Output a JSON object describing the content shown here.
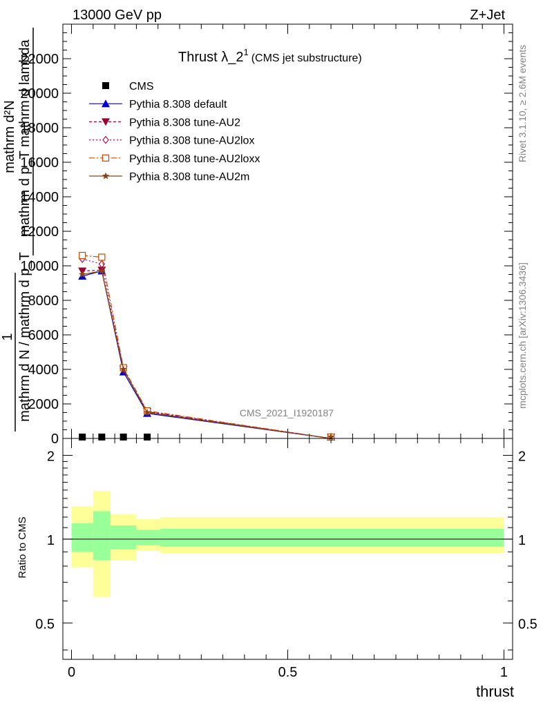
{
  "header": {
    "left": "13000 GeV pp",
    "right": "Z+Jet"
  },
  "side_labels": {
    "rivet": "Rivet 3.1.10, ≥ 2.6M events",
    "mcplots": "mcplots.cern.ch [arXiv:1306.3436]"
  },
  "watermark": "CMS_2021_I1920187",
  "colors": {
    "cms": "#000000",
    "default": "#0000cc",
    "au2": "#990033",
    "au2lox": "#aa1155",
    "au2loxx": "#cc4400",
    "au2m": "#884411",
    "band_outer": "#ffff99",
    "band_inner": "#99ff99"
  },
  "chart_data": [
    {
      "type": "line",
      "title": "Thrust λ_2",
      "title_sup": "1",
      "title_suffix": "(CMS jet substructure)",
      "ylabel_lines": [
        "mathrm d²N",
        "mathrm d p_T mathrm d lambda",
        "1",
        "mathrm d N / mathrm d p_T"
      ],
      "xlabel": "",
      "xlim": [
        -0.02,
        1.02
      ],
      "ylim": [
        0,
        24000
      ],
      "ytick_labels": [
        "0",
        "2000",
        "4000",
        "6000",
        "8000",
        "10000",
        "12000",
        "14000",
        "16000",
        "18000",
        "20000",
        "22000"
      ],
      "ytick_values": [
        0,
        2000,
        4000,
        6000,
        8000,
        10000,
        12000,
        14000,
        16000,
        18000,
        20000,
        22000
      ],
      "legend_position": "top-left",
      "series": [
        {
          "name": "CMS",
          "key": "cms",
          "marker": "square",
          "x": [
            0.025,
            0.07,
            0.12,
            0.175
          ],
          "y": [
            0,
            0,
            0,
            0
          ]
        },
        {
          "name": "Pythia 8.308 default",
          "key": "default",
          "marker": "triangle-up",
          "dash": "",
          "x": [
            0.025,
            0.07,
            0.12,
            0.175,
            0.6
          ],
          "y": [
            9400,
            9700,
            3850,
            1450,
            0
          ]
        },
        {
          "name": "Pythia 8.308 tune-AU2",
          "key": "au2",
          "marker": "triangle-down",
          "dash": "4,3",
          "x": [
            0.025,
            0.07,
            0.12,
            0.175,
            0.6
          ],
          "y": [
            9700,
            9750,
            4000,
            1550,
            0
          ]
        },
        {
          "name": "Pythia 8.308 tune-AU2lox",
          "key": "au2lox",
          "marker": "diamond-open",
          "dash": "2,3",
          "x": [
            0.025,
            0.07,
            0.12,
            0.175,
            0.6
          ],
          "y": [
            10400,
            10100,
            4050,
            1550,
            0
          ]
        },
        {
          "name": "Pythia 8.308 tune-AU2loxx",
          "key": "au2loxx",
          "marker": "square-open",
          "dash": "8,3,2,3",
          "x": [
            0.025,
            0.07,
            0.12,
            0.175,
            0.6
          ],
          "y": [
            10600,
            10500,
            4100,
            1600,
            0
          ]
        },
        {
          "name": "Pythia 8.308 tune-AU2m",
          "key": "au2m",
          "marker": "star",
          "dash": "",
          "x": [
            0.025,
            0.07,
            0.12,
            0.175,
            0.6
          ],
          "y": [
            9500,
            9700,
            4000,
            1500,
            0
          ]
        }
      ]
    },
    {
      "type": "area",
      "ylabel": "Ratio to CMS",
      "xlabel": "thrust",
      "log_y": true,
      "ylim": [
        0.37,
        2.3
      ],
      "xlim": [
        -0.02,
        1.02
      ],
      "xtick_labels": [
        "0",
        "0.5",
        "1"
      ],
      "xtick_values": [
        0,
        0.5,
        1
      ],
      "ytick_labels": [
        "0.5",
        "1",
        "2"
      ],
      "ytick_values": [
        0.5,
        1,
        2
      ],
      "reference_line": 1,
      "bands": [
        {
          "x0": 0.0,
          "x1": 0.05,
          "outer": [
            0.79,
            1.31
          ],
          "inner": [
            0.9,
            1.14
          ]
        },
        {
          "x0": 0.05,
          "x1": 0.09,
          "outer": [
            0.62,
            1.49
          ],
          "inner": [
            0.84,
            1.26
          ]
        },
        {
          "x0": 0.09,
          "x1": 0.15,
          "outer": [
            0.84,
            1.23
          ],
          "inner": [
            0.92,
            1.12
          ]
        },
        {
          "x0": 0.15,
          "x1": 0.205,
          "outer": [
            0.91,
            1.18
          ],
          "inner": [
            0.95,
            1.08
          ]
        },
        {
          "x0": 0.205,
          "x1": 1.0,
          "outer": [
            0.89,
            1.2
          ],
          "inner": [
            0.94,
            1.09
          ]
        }
      ]
    }
  ]
}
